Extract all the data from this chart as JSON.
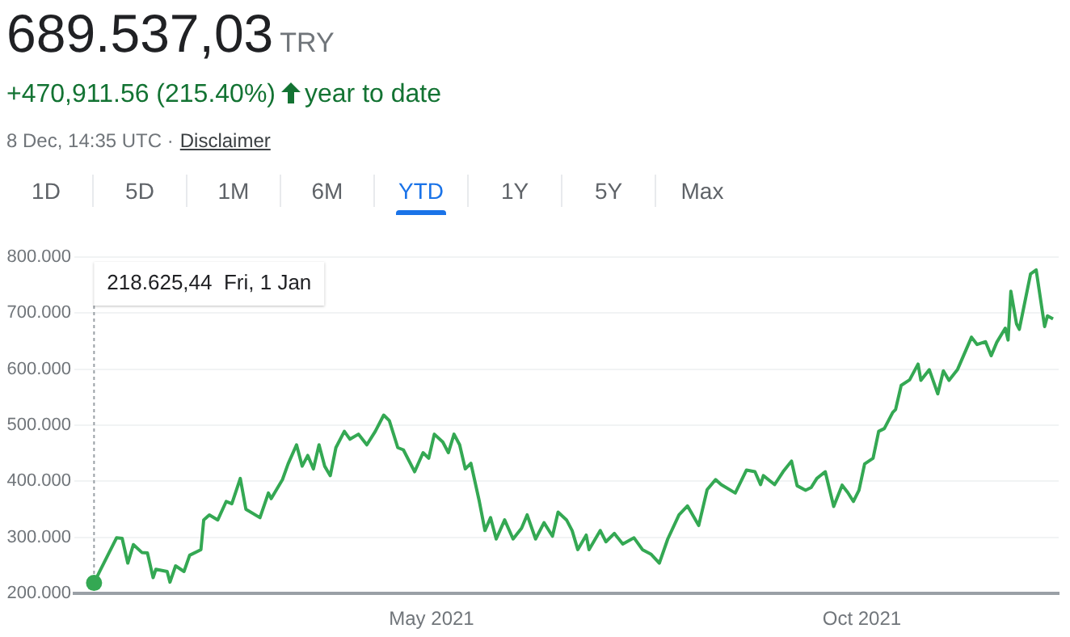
{
  "chart_data": {
    "type": "line",
    "title": "689.537,03",
    "annotations": [
      "TRY",
      "+470,911.56 (215.40%)",
      "year to date",
      "8 Dec, 14:35 UTC ·",
      "Disclaimer",
      "1D",
      "5D",
      "1M",
      "6M",
      "YTD",
      "1Y",
      "5Y",
      "Max",
      {
        "text": "218.625,44  Fri, 1 Jan",
        "x": "2021-01-01",
        "y": 218625.44
      }
    ],
    "x": [
      "2021-01-01",
      "2021-01-03",
      "2021-01-09",
      "2021-01-11",
      "2021-01-13",
      "2021-01-15",
      "2021-01-18",
      "2021-01-20",
      "2021-01-22",
      "2021-01-23",
      "2021-01-27",
      "2021-01-28",
      "2021-01-30",
      "2021-02-02",
      "2021-02-04",
      "2021-02-08",
      "2021-02-09",
      "2021-02-11",
      "2021-02-14",
      "2021-02-17",
      "2021-02-19",
      "2021-02-22",
      "2021-02-24",
      "2021-03-01",
      "2021-03-04",
      "2021-03-05",
      "2021-03-09",
      "2021-03-11",
      "2021-03-14",
      "2021-03-16",
      "2021-03-18",
      "2021-03-20",
      "2021-03-22",
      "2021-03-24",
      "2021-03-26",
      "2021-03-28",
      "2021-03-31",
      "2021-04-02",
      "2021-04-05",
      "2021-04-08",
      "2021-04-11",
      "2021-04-14",
      "2021-04-16",
      "2021-04-19",
      "2021-04-21",
      "2021-04-25",
      "2021-04-28",
      "2021-04-30",
      "2021-05-02",
      "2021-05-05",
      "2021-05-07",
      "2021-05-09",
      "2021-05-11",
      "2021-05-13",
      "2021-05-15",
      "2021-05-18",
      "2021-05-20",
      "2021-05-22",
      "2021-05-24",
      "2021-05-27",
      "2021-05-30",
      "2021-06-02",
      "2021-06-04",
      "2021-06-07",
      "2021-06-10",
      "2021-06-13",
      "2021-06-15",
      "2021-06-18",
      "2021-06-20",
      "2021-06-22",
      "2021-06-25",
      "2021-06-26",
      "2021-06-30",
      "2021-07-02",
      "2021-07-05",
      "2021-07-08",
      "2021-07-12",
      "2021-07-15",
      "2021-07-18",
      "2021-07-21",
      "2021-07-24",
      "2021-07-28",
      "2021-07-31",
      "2021-08-04",
      "2021-08-07",
      "2021-08-10",
      "2021-08-12",
      "2021-08-17",
      "2021-08-21",
      "2021-08-24",
      "2021-08-26",
      "2021-08-27",
      "2021-08-31",
      "2021-09-03",
      "2021-09-06",
      "2021-09-08",
      "2021-09-11",
      "2021-09-13",
      "2021-09-15",
      "2021-09-18",
      "2021-09-21",
      "2021-09-24",
      "2021-09-26",
      "2021-09-28",
      "2021-09-30",
      "2021-10-02",
      "2021-10-05",
      "2021-10-07",
      "2021-10-09",
      "2021-10-12",
      "2021-10-13",
      "2021-10-15",
      "2021-10-18",
      "2021-10-21",
      "2021-10-22",
      "2021-10-25",
      "2021-10-28",
      "2021-10-30",
      "2021-11-01",
      "2021-11-04",
      "2021-11-09",
      "2021-11-11",
      "2021-11-14",
      "2021-11-16",
      "2021-11-18",
      "2021-11-21",
      "2021-11-22",
      "2021-11-23",
      "2021-11-25",
      "2021-11-26",
      "2021-11-30",
      "2021-12-02",
      "2021-12-05",
      "2021-12-06",
      "2021-12-08"
    ],
    "series": [
      {
        "color": "#34a853",
        "values": [
          218625.44,
          239000,
          299000,
          298000,
          254000,
          287000,
          273000,
          272000,
          228000,
          243000,
          239000,
          220000,
          249000,
          239000,
          268000,
          278000,
          331000,
          340000,
          331000,
          364000,
          360000,
          405000,
          350000,
          335000,
          379000,
          369000,
          403000,
          431000,
          465000,
          427000,
          446000,
          422000,
          465000,
          427000,
          410000,
          460000,
          489000,
          475000,
          484000,
          465000,
          489000,
          518000,
          508000,
          460000,
          456000,
          417000,
          451000,
          441000,
          484000,
          470000,
          451000,
          484000,
          465000,
          422000,
          432000,
          364000,
          312000,
          335000,
          297000,
          331000,
          297000,
          316000,
          340000,
          297000,
          326000,
          302000,
          345000,
          331000,
          312000,
          278000,
          304000,
          278000,
          312000,
          292000,
          307000,
          288000,
          299000,
          278000,
          270000,
          254000,
          297000,
          340000,
          356000,
          321000,
          385000,
          403000,
          394000,
          379000,
          420000,
          417000,
          394000,
          410000,
          394000,
          417000,
          436000,
          392000,
          384000,
          389000,
          405000,
          417000,
          355000,
          393000,
          380000,
          364000,
          384000,
          431000,
          441000,
          489000,
          494000,
          523000,
          528000,
          571000,
          581000,
          609000,
          580000,
          599000,
          556000,
          597000,
          580000,
          599000,
          657000,
          644000,
          649000,
          624000,
          648000,
          673000,
          652000,
          739000,
          681000,
          671000,
          770000,
          777000,
          676000,
          695000,
          689537.03
        ]
      }
    ],
    "xlim": [
      "2020-12-25",
      "2021-12-10"
    ],
    "xticks": [
      {
        "value": "2021-05-01",
        "label": "May 2021"
      },
      {
        "value": "2021-10-01",
        "label": "Oct 2021"
      }
    ],
    "ylim": [
      200000,
      800000
    ],
    "yticks": [
      {
        "value": 200000,
        "label": "200.000"
      },
      {
        "value": 300000,
        "label": "300.000"
      },
      {
        "value": 400000,
        "label": "400.000"
      },
      {
        "value": 500000,
        "label": "500.000"
      },
      {
        "value": 600000,
        "label": "600.000"
      },
      {
        "value": 700000,
        "label": "700.000"
      },
      {
        "value": 800000,
        "label": "800.000"
      }
    ],
    "grid": "y",
    "legend": false,
    "marker": "none",
    "line_style": "solid"
  }
}
